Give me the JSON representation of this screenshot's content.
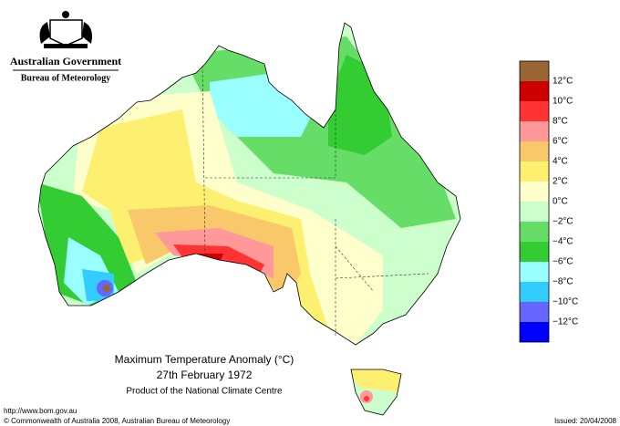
{
  "header": {
    "agency": "Australian Government",
    "bureau": "Bureau of Meteorology"
  },
  "legend": {
    "labels": [
      "12°C",
      "10°C",
      "8°C",
      "6°C",
      "4°C",
      "2°C",
      "0°C",
      "−2°C",
      "−4°C",
      "−6°C",
      "−8°C",
      "−10°C",
      "−12°C"
    ]
  },
  "caption": {
    "title": "Maximum Temperature Anomaly (°C)",
    "date": "27th February 1972",
    "product": "Product of the National Climate Centre"
  },
  "footer": {
    "url": "http://www.bom.gov.au",
    "copyright": "© Commonwealth of Australia 2008, Australian Bureau of Meteorology",
    "issued": "Issued: 20/04/2008"
  }
}
